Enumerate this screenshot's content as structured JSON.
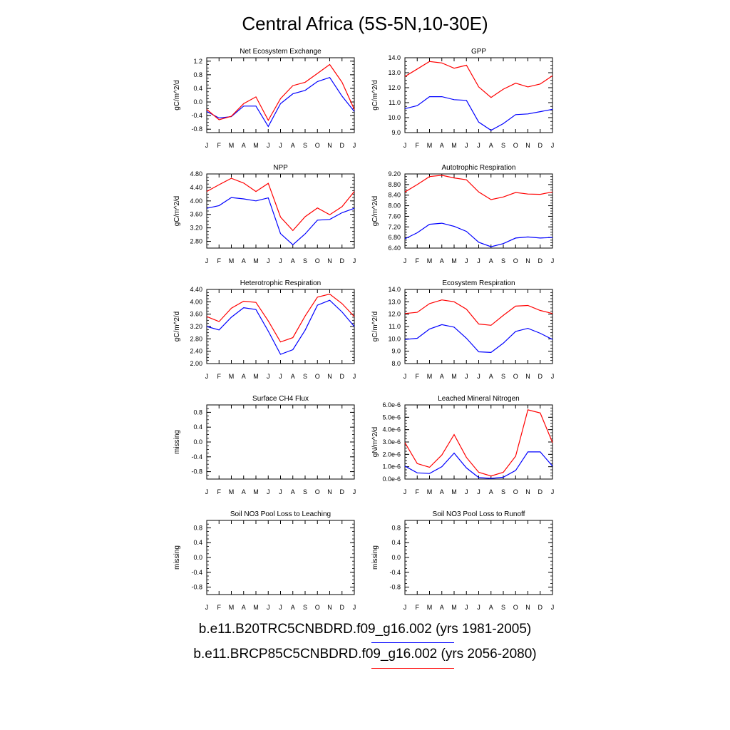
{
  "page": {
    "title": "Central Africa (5S-5N,10-30E)"
  },
  "legend": [
    {
      "text": "b.e11.B20TRC5CNBDRD.f09_g16.002 (yrs 1981-2005)",
      "color": "#0000ff"
    },
    {
      "text": "b.e11.BRCP85C5CNBDRD.f09_g16.002 (yrs 2056-2080)",
      "color": "#ff0000"
    }
  ],
  "colors": {
    "series_1": "#0000ff",
    "series_2": "#ff0000"
  },
  "chart_data": [
    {
      "type": "line",
      "title": "Net Ecosystem Exchange",
      "ylabel": "gC/m^2/d",
      "categories": [
        "J",
        "F",
        "M",
        "A",
        "M",
        "J",
        "J",
        "A",
        "S",
        "O",
        "N",
        "D",
        "J"
      ],
      "ylim": [
        -0.9,
        1.3
      ],
      "yticks": [
        -0.8,
        -0.4,
        0.0,
        0.4,
        0.8,
        1.2
      ],
      "yticklabels": [
        "-0.8",
        "-0.4",
        "0.0",
        "0.4",
        "0.8",
        "1.2"
      ],
      "series": [
        {
          "values": [
            -0.28,
            -0.47,
            -0.43,
            -0.12,
            -0.12,
            -0.72,
            -0.05,
            0.24,
            0.34,
            0.6,
            0.72,
            0.17,
            -0.28
          ]
        },
        {
          "values": [
            -0.22,
            -0.52,
            -0.42,
            -0.05,
            0.15,
            -0.54,
            0.1,
            0.48,
            0.58,
            0.84,
            1.1,
            0.58,
            -0.22
          ]
        }
      ]
    },
    {
      "type": "line",
      "title": "GPP",
      "ylabel": "gC/m^2/d",
      "categories": [
        "J",
        "F",
        "M",
        "A",
        "M",
        "J",
        "J",
        "A",
        "S",
        "O",
        "N",
        "D",
        "J"
      ],
      "ylim": [
        9.0,
        14.0
      ],
      "yticks": [
        9.0,
        10.0,
        11.0,
        12.0,
        13.0,
        14.0
      ],
      "yticklabels": [
        "9.0",
        "10.0",
        "11.0",
        "12.0",
        "13.0",
        "14.0"
      ],
      "series": [
        {
          "values": [
            10.6,
            10.8,
            11.4,
            11.4,
            11.2,
            11.15,
            9.7,
            9.15,
            9.6,
            10.2,
            10.25,
            10.4,
            10.55
          ]
        },
        {
          "values": [
            12.75,
            13.25,
            13.75,
            13.65,
            13.3,
            13.5,
            12.05,
            11.35,
            11.9,
            12.3,
            12.05,
            12.25,
            12.8
          ]
        }
      ]
    },
    {
      "type": "line",
      "title": "NPP",
      "ylabel": "gC/m^2/d",
      "categories": [
        "J",
        "F",
        "M",
        "A",
        "M",
        "J",
        "J",
        "A",
        "S",
        "O",
        "N",
        "D",
        "J"
      ],
      "ylim": [
        2.6,
        4.8
      ],
      "yticks": [
        2.8,
        3.2,
        3.6,
        4.0,
        4.4,
        4.8
      ],
      "yticklabels": [
        "2.80",
        "3.20",
        "3.60",
        "4.00",
        "4.40",
        "4.80"
      ],
      "series": [
        {
          "values": [
            3.78,
            3.86,
            4.1,
            4.06,
            4.0,
            4.09,
            3.03,
            2.7,
            3.02,
            3.43,
            3.45,
            3.65,
            3.78
          ]
        },
        {
          "values": [
            4.28,
            4.48,
            4.67,
            4.53,
            4.28,
            4.52,
            3.52,
            3.12,
            3.53,
            3.79,
            3.59,
            3.83,
            4.28
          ]
        }
      ]
    },
    {
      "type": "line",
      "title": "Autotrophic Respiration",
      "ylabel": "gC/m^2/d",
      "categories": [
        "J",
        "F",
        "M",
        "A",
        "M",
        "J",
        "J",
        "A",
        "S",
        "O",
        "N",
        "D",
        "J"
      ],
      "ylim": [
        6.4,
        9.2
      ],
      "yticks": [
        6.4,
        6.8,
        7.2,
        7.6,
        8.0,
        8.4,
        8.8,
        9.2
      ],
      "yticklabels": [
        "6.40",
        "6.80",
        "7.20",
        "7.60",
        "8.00",
        "8.40",
        "8.80",
        "9.20"
      ],
      "series": [
        {
          "values": [
            6.75,
            6.98,
            7.3,
            7.34,
            7.22,
            7.03,
            6.62,
            6.45,
            6.57,
            6.78,
            6.82,
            6.78,
            6.8
          ]
        },
        {
          "values": [
            8.52,
            8.8,
            9.1,
            9.15,
            9.05,
            8.98,
            8.52,
            8.23,
            8.33,
            8.5,
            8.44,
            8.43,
            8.52
          ]
        }
      ]
    },
    {
      "type": "line",
      "title": "Heterotrophic Respiration",
      "ylabel": "gC/m^2/d",
      "categories": [
        "J",
        "F",
        "M",
        "A",
        "M",
        "J",
        "J",
        "A",
        "S",
        "O",
        "N",
        "D",
        "J"
      ],
      "ylim": [
        2.0,
        4.4
      ],
      "yticks": [
        2.0,
        2.4,
        2.8,
        3.2,
        3.6,
        4.0,
        4.4
      ],
      "yticklabels": [
        "2.00",
        "2.40",
        "2.80",
        "3.20",
        "3.60",
        "4.00",
        "4.40"
      ],
      "series": [
        {
          "values": [
            3.2,
            3.09,
            3.5,
            3.81,
            3.75,
            3.05,
            2.3,
            2.45,
            3.08,
            3.89,
            4.05,
            3.67,
            3.2
          ]
        },
        {
          "values": [
            3.52,
            3.36,
            3.79,
            4.02,
            3.98,
            3.38,
            2.7,
            2.84,
            3.54,
            4.15,
            4.25,
            3.94,
            3.52
          ]
        }
      ]
    },
    {
      "type": "line",
      "title": "Ecosystem Respiration",
      "ylabel": "gC/m^2/d",
      "categories": [
        "J",
        "F",
        "M",
        "A",
        "M",
        "J",
        "J",
        "A",
        "S",
        "O",
        "N",
        "D",
        "J"
      ],
      "ylim": [
        8.0,
        14.0
      ],
      "yticks": [
        8.0,
        9.0,
        10.0,
        11.0,
        12.0,
        13.0,
        14.0
      ],
      "yticklabels": [
        "8.0",
        "9.0",
        "10.0",
        "11.0",
        "12.0",
        "13.0",
        "14.0"
      ],
      "series": [
        {
          "values": [
            9.95,
            10.05,
            10.8,
            11.15,
            10.95,
            10.05,
            8.95,
            8.9,
            9.65,
            10.6,
            10.85,
            10.45,
            9.95
          ]
        },
        {
          "values": [
            12.05,
            12.15,
            12.85,
            13.15,
            13.0,
            12.4,
            11.2,
            11.1,
            11.9,
            12.65,
            12.7,
            12.3,
            12.05
          ]
        }
      ]
    },
    {
      "type": "line",
      "title": "Surface CH4 Flux",
      "ylabel": "missing",
      "categories": [
        "J",
        "F",
        "M",
        "A",
        "M",
        "J",
        "J",
        "A",
        "S",
        "O",
        "N",
        "D",
        "J"
      ],
      "ylim": [
        -1.0,
        1.0
      ],
      "yticks": [
        -0.8,
        -0.4,
        0.0,
        0.4,
        0.8
      ],
      "yticklabels": [
        "-0.8",
        "-0.4",
        "0.0",
        "0.4",
        "0.8"
      ],
      "series": []
    },
    {
      "type": "line",
      "title": "Leached Mineral Nitrogen",
      "ylabel": "gN/m^2/d",
      "categories": [
        "J",
        "F",
        "M",
        "A",
        "M",
        "J",
        "J",
        "A",
        "S",
        "O",
        "N",
        "D",
        "J"
      ],
      "ylim": [
        0.0,
        6e-06
      ],
      "yticks": [
        0.0,
        1e-06,
        2e-06,
        3e-06,
        4e-06,
        5e-06,
        6e-06
      ],
      "yticklabels": [
        "0.0e-6",
        "1.0e-6",
        "2.0e-6",
        "3.0e-6",
        "4.0e-6",
        "5.0e-6",
        "6.0e-6"
      ],
      "series": [
        {
          "values": [
            1.05e-06,
            5e-07,
            4.5e-07,
            1e-06,
            2.1e-06,
            9e-07,
            1.2e-07,
            5e-08,
            1.5e-07,
            7e-07,
            2.2e-06,
            2.2e-06,
            1.05e-06
          ]
        },
        {
          "values": [
            2.95e-06,
            1.25e-06,
            9.5e-07,
            1.95e-06,
            3.6e-06,
            1.75e-06,
            5.5e-07,
            2.5e-07,
            5.5e-07,
            1.85e-06,
            5.6e-06,
            5.35e-06,
            2.95e-06
          ]
        }
      ]
    },
    {
      "type": "line",
      "title": "Soil NO3 Pool Loss to Leaching",
      "ylabel": "missing",
      "categories": [
        "J",
        "F",
        "M",
        "A",
        "M",
        "J",
        "J",
        "A",
        "S",
        "O",
        "N",
        "D",
        "J"
      ],
      "ylim": [
        -1.0,
        1.0
      ],
      "yticks": [
        -0.8,
        -0.4,
        0.0,
        0.4,
        0.8
      ],
      "yticklabels": [
        "-0.8",
        "-0.4",
        "0.0",
        "0.4",
        "0.8"
      ],
      "series": []
    },
    {
      "type": "line",
      "title": "Soil NO3 Pool Loss to Runoff",
      "ylabel": "missing",
      "categories": [
        "J",
        "F",
        "M",
        "A",
        "M",
        "J",
        "J",
        "A",
        "S",
        "O",
        "N",
        "D",
        "J"
      ],
      "ylim": [
        -1.0,
        1.0
      ],
      "yticks": [
        -0.8,
        -0.4,
        0.0,
        0.4,
        0.8
      ],
      "yticklabels": [
        "-0.8",
        "-0.4",
        "0.0",
        "0.4",
        "0.8"
      ],
      "series": []
    }
  ]
}
